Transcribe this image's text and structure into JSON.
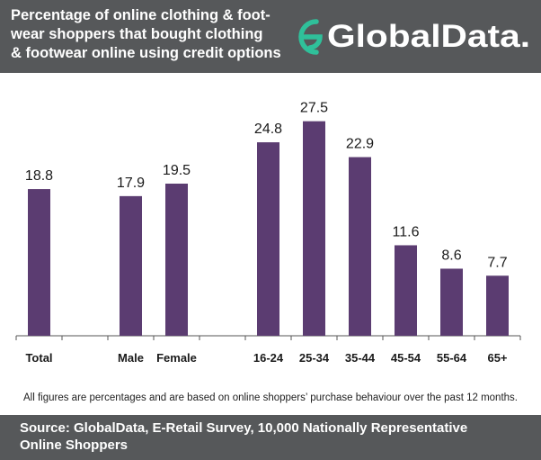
{
  "header": {
    "title_lines": [
      "Percentage of online clothing & foot-",
      "wear shoppers that bought clothing",
      "& footwear online using credit options"
    ],
    "logo_text": "GlobalData."
  },
  "colors": {
    "header_bg": "#56585a",
    "bar": "#5b3c71",
    "logo_accent": "#2fc09a",
    "text": "#1a1a1a"
  },
  "chart_data": {
    "type": "bar",
    "categories": [
      "Total",
      "",
      "Male",
      "Female",
      "",
      "16-24",
      "25-34",
      "35-44",
      "45-54",
      "55-64",
      "65+"
    ],
    "values": [
      18.8,
      null,
      17.9,
      19.5,
      null,
      24.8,
      27.5,
      22.9,
      11.6,
      8.6,
      7.7
    ],
    "value_labels": [
      "18.8",
      "",
      "17.9",
      "19.5",
      "",
      "24.8",
      "27.5",
      "22.9",
      "11.6",
      "8.6",
      "7.7"
    ],
    "title": "",
    "xlabel": "",
    "ylabel": "",
    "ylim": [
      0,
      30
    ],
    "grid": false,
    "legend": "none"
  },
  "note": "All figures are percentages and are based on online shoppers’ purchase behaviour over the past 12 months.",
  "footer": {
    "source_lines": [
      "Source: GlobalData, E-Retail Survey, 10,000 Nationally Representative",
      "Online Shoppers"
    ]
  }
}
